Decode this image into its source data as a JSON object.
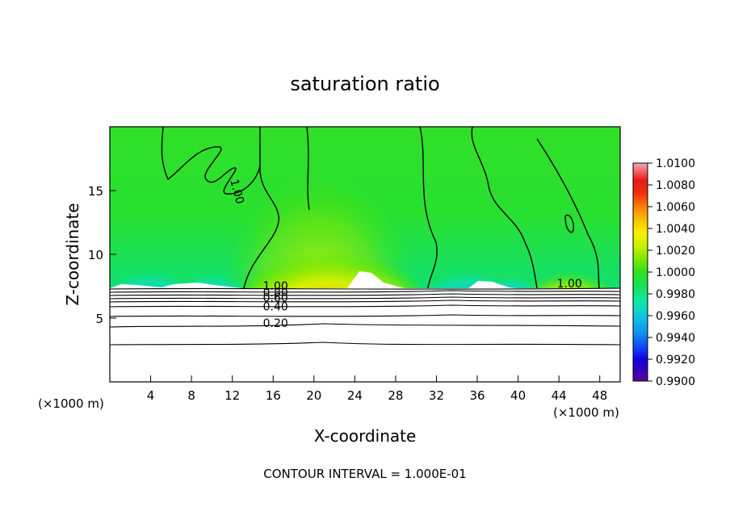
{
  "chart_data": {
    "type": "heatmap",
    "title": "saturation ratio",
    "xlabel": "X-coordinate",
    "ylabel": "Z-coordinate",
    "x_unit_left": "(×1000 m)",
    "x_unit_right": "(×1000 m)",
    "xlim": [
      0,
      50
    ],
    "ylim": [
      0,
      20
    ],
    "x_ticks": [
      4,
      8,
      12,
      16,
      20,
      24,
      28,
      32,
      36,
      40,
      44,
      48
    ],
    "y_ticks": [
      5,
      10,
      15
    ],
    "footer": "CONTOUR INTERVAL = 1.000E-01",
    "colorbar": {
      "min": 0.99,
      "max": 1.01,
      "labels": [
        "1.0100",
        "1.0080",
        "1.0060",
        "1.0040",
        "1.0020",
        "1.0000",
        "0.9980",
        "0.9960",
        "0.9940",
        "0.9920",
        "0.9900"
      ],
      "colors": [
        "#f4a8b4",
        "#ee5860",
        "#e81818",
        "#f04010",
        "#f88008",
        "#f8b400",
        "#f8e000",
        "#d8f000",
        "#a0f000",
        "#60e800",
        "#28e020",
        "#10e050",
        "#10e8a0",
        "#10d8d8",
        "#10a8f0",
        "#1070f8",
        "#1030f0",
        "#1000d8",
        "#3800b8",
        "#600090"
      ]
    },
    "contour_labels": [
      {
        "text": "1.00",
        "x": 11.8,
        "z": 15.8
      },
      {
        "text": "1.00",
        "x": 43.8,
        "z": 7.4
      },
      {
        "text": "1.00",
        "x": 15.0,
        "z": 7.2
      },
      {
        "text": "0.80",
        "x": 15.0,
        "z": 6.7
      },
      {
        "text": "0.60",
        "x": 15.0,
        "z": 6.3
      },
      {
        "text": "0.40",
        "x": 15.0,
        "z": 5.6
      },
      {
        "text": "0.20",
        "x": 15.0,
        "z": 4.3
      }
    ]
  }
}
